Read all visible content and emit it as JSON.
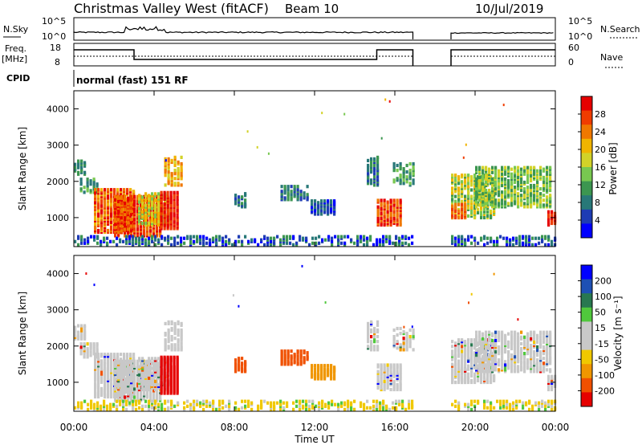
{
  "header": {
    "title": "Christmas Valley West (fitACF)",
    "beam": "Beam 10",
    "date": "10/Jul/2019"
  },
  "top_panels": {
    "nsky_label": "N.Sky",
    "nsky_ticks": [
      "10^5",
      "10^0"
    ],
    "nsearch_label": "N.Search",
    "nsearch_ticks": [
      "10^5",
      "10^0"
    ],
    "freq_label_1": "Freq.",
    "freq_label_2": "[MHz]",
    "freq_ticks": [
      "18",
      "8"
    ],
    "nave_label": "Nave",
    "nave_ticks": [
      "60",
      "0"
    ],
    "cpid_label": "CPID",
    "cpid_value": "normal (fast) 151 RF"
  },
  "colors": {
    "power_scale": [
      "#0000ff",
      "#1e3cb4",
      "#287878",
      "#3c9650",
      "#78c850",
      "#d2d228",
      "#f0b400",
      "#f07800",
      "#f03c00",
      "#e60000"
    ],
    "velocity_scale": [
      "#0000ff",
      "#1e50b4",
      "#287850",
      "#50c83c",
      "#c8c8c8",
      "#c8c8c8",
      "#f0c800",
      "#f09600",
      "#f05000",
      "#e60000"
    ]
  },
  "chart_data": [
    {
      "type": "heatmap",
      "name": "power",
      "ylabel": "Slant Range [km]",
      "y_ticks": [
        "1000",
        "2000",
        "3000",
        "4000"
      ],
      "ylim": [
        200,
        4500
      ],
      "xlim": [
        0,
        24
      ],
      "colorbar_label": "Power [dB]",
      "colorbar_ticks": [
        "4",
        "8",
        "12",
        "16",
        "20",
        "24",
        "28"
      ],
      "colorbar_range": [
        0,
        32
      ]
    },
    {
      "type": "heatmap",
      "name": "velocity",
      "ylabel": "Slant Range [km]",
      "y_ticks": [
        "1000",
        "2000",
        "3000",
        "4000"
      ],
      "ylim": [
        200,
        4500
      ],
      "xlim": [
        0,
        24
      ],
      "colorbar_label": "Velocity [m s⁻¹]",
      "colorbar_ticks": [
        "200",
        "100",
        "50",
        "15",
        "-15",
        "-50",
        "-100",
        "-200"
      ]
    }
  ],
  "x_axis": {
    "label": "Time UT",
    "ticks": [
      "00:00",
      "04:00",
      "08:00",
      "12:00",
      "16:00",
      "20:00",
      "00:00"
    ]
  }
}
